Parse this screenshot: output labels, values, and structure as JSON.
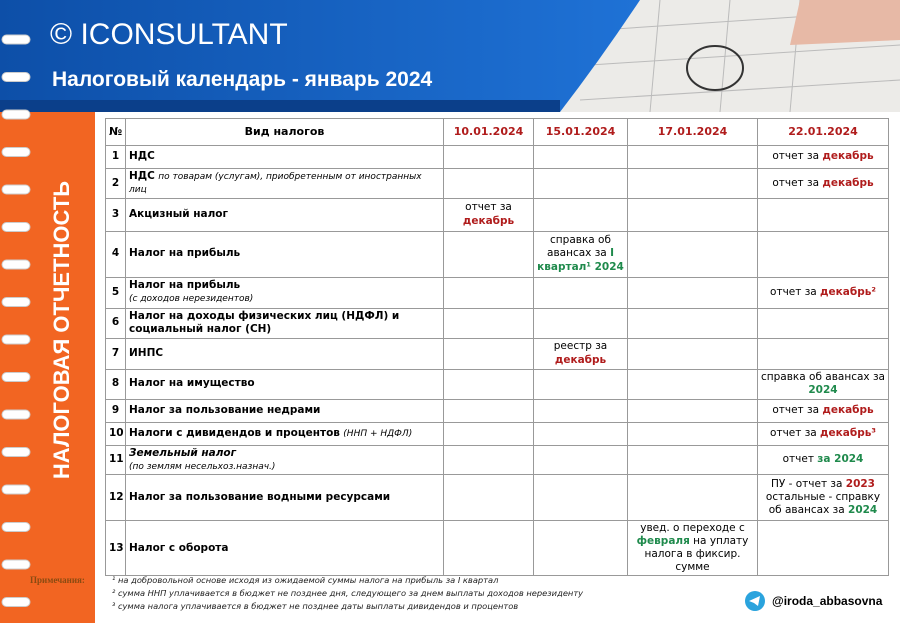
{
  "header": {
    "brand": "© ICONSULTANT",
    "title": "Налоговый календарь - январь 2024"
  },
  "side_label": "НАЛОГОВАЯ ОТЧЕТНОСТЬ",
  "table": {
    "columns": [
      "№",
      "Вид налогов",
      "10.01.2024",
      "15.01.2024",
      "17.01.2024",
      "22.01.2024"
    ],
    "rows": [
      {
        "num": "1",
        "name": "НДС",
        "cells": [
          null,
          null,
          null,
          [
            {
              "text": "отчет за ",
              "tone": "plain"
            },
            {
              "text": "декабрь",
              "tone": "red"
            }
          ]
        ]
      },
      {
        "num": "2",
        "name": "НДС",
        "note": "по товарам (услугам), приобретенным от иностранных лиц",
        "cells": [
          null,
          null,
          null,
          [
            {
              "text": "отчет за ",
              "tone": "plain"
            },
            {
              "text": "декабрь",
              "tone": "red"
            }
          ]
        ]
      },
      {
        "num": "3",
        "name": "Акцизный налог",
        "cells": [
          [
            {
              "text": "отчет за ",
              "tone": "plain"
            },
            {
              "text": "декабрь",
              "tone": "red"
            }
          ],
          null,
          null,
          null
        ]
      },
      {
        "num": "4",
        "name": "Налог на прибыль",
        "cells": [
          null,
          [
            {
              "text": "справка об авансах за ",
              "tone": "plain"
            },
            {
              "text": "I квартал¹ 2024",
              "tone": "green"
            }
          ],
          null,
          null
        ]
      },
      {
        "num": "5",
        "name": "Налог на прибыль",
        "note": "(с доходов нерезидентов)",
        "note_block": true,
        "cells": [
          null,
          null,
          null,
          [
            {
              "text": "отчет за ",
              "tone": "plain"
            },
            {
              "text": "декабрь²",
              "tone": "red"
            }
          ]
        ]
      },
      {
        "num": "6",
        "name": "Налог на доходы физических лиц (НДФЛ) и социальный налог (СН)",
        "cells": [
          null,
          null,
          null,
          null
        ]
      },
      {
        "num": "7",
        "name": "ИНПС",
        "cells": [
          null,
          [
            {
              "text": "реестр за ",
              "tone": "plain"
            },
            {
              "text": "декабрь",
              "tone": "red"
            }
          ],
          null,
          null
        ]
      },
      {
        "num": "8",
        "name": "Налог  на имущество",
        "cells": [
          null,
          null,
          null,
          [
            {
              "text": "справка об авансах за ",
              "tone": "plain"
            },
            {
              "text": "2024",
              "tone": "green"
            }
          ]
        ]
      },
      {
        "num": "9",
        "name": "Налог за пользование недрами",
        "cells": [
          null,
          null,
          null,
          [
            {
              "text": "отчет за ",
              "tone": "plain"
            },
            {
              "text": "декабрь",
              "tone": "red"
            }
          ]
        ]
      },
      {
        "num": "10",
        "name": "Налоги с дивидендов и процентов",
        "note": "(ННП + НДФЛ)",
        "cells": [
          null,
          null,
          null,
          [
            {
              "text": "отчет за ",
              "tone": "plain"
            },
            {
              "text": "декабрь³",
              "tone": "red"
            }
          ]
        ]
      },
      {
        "num": "11",
        "name": "Земельный налог",
        "name_italic": true,
        "note": "(по землям несельхоз.назнач.)",
        "note_block": true,
        "cells": [
          null,
          null,
          null,
          [
            {
              "text": "отчет ",
              "tone": "plain"
            },
            {
              "text": "за 2024",
              "tone": "green"
            }
          ]
        ]
      },
      {
        "num": "12",
        "name": "Налог за пользование водными ресурсами",
        "cells": [
          null,
          null,
          null,
          [
            {
              "text": "ПУ - отчет за ",
              "tone": "plain"
            },
            {
              "text": "2023",
              "tone": "red"
            },
            {
              "text": " остальные - справку об авансах за ",
              "tone": "plain"
            },
            {
              "text": "2024",
              "tone": "green"
            }
          ]
        ]
      },
      {
        "num": "13",
        "name": "Налог с оборота",
        "cells": [
          null,
          null,
          [
            {
              "text": "увед. о переходе с ",
              "tone": "plain"
            },
            {
              "text": "февраля",
              "tone": "green"
            },
            {
              "text": " на уплату налога в фиксир. сумме",
              "tone": "plain"
            }
          ],
          null
        ]
      }
    ]
  },
  "footer": {
    "label": "Примечания:",
    "notes": [
      "¹ на добровольной основе исходя из ожидаемой суммы налога на прибыль за I квартал",
      "² сумма ННП уплачивается в бюджет не позднее дня, следующего за днем выплаты доходов нерезиденту",
      "³ сумма налога уплачивается в бюджет не позднее даты выплаты дивидендов и процентов"
    ],
    "handle": "@iroda_abbasovna"
  }
}
